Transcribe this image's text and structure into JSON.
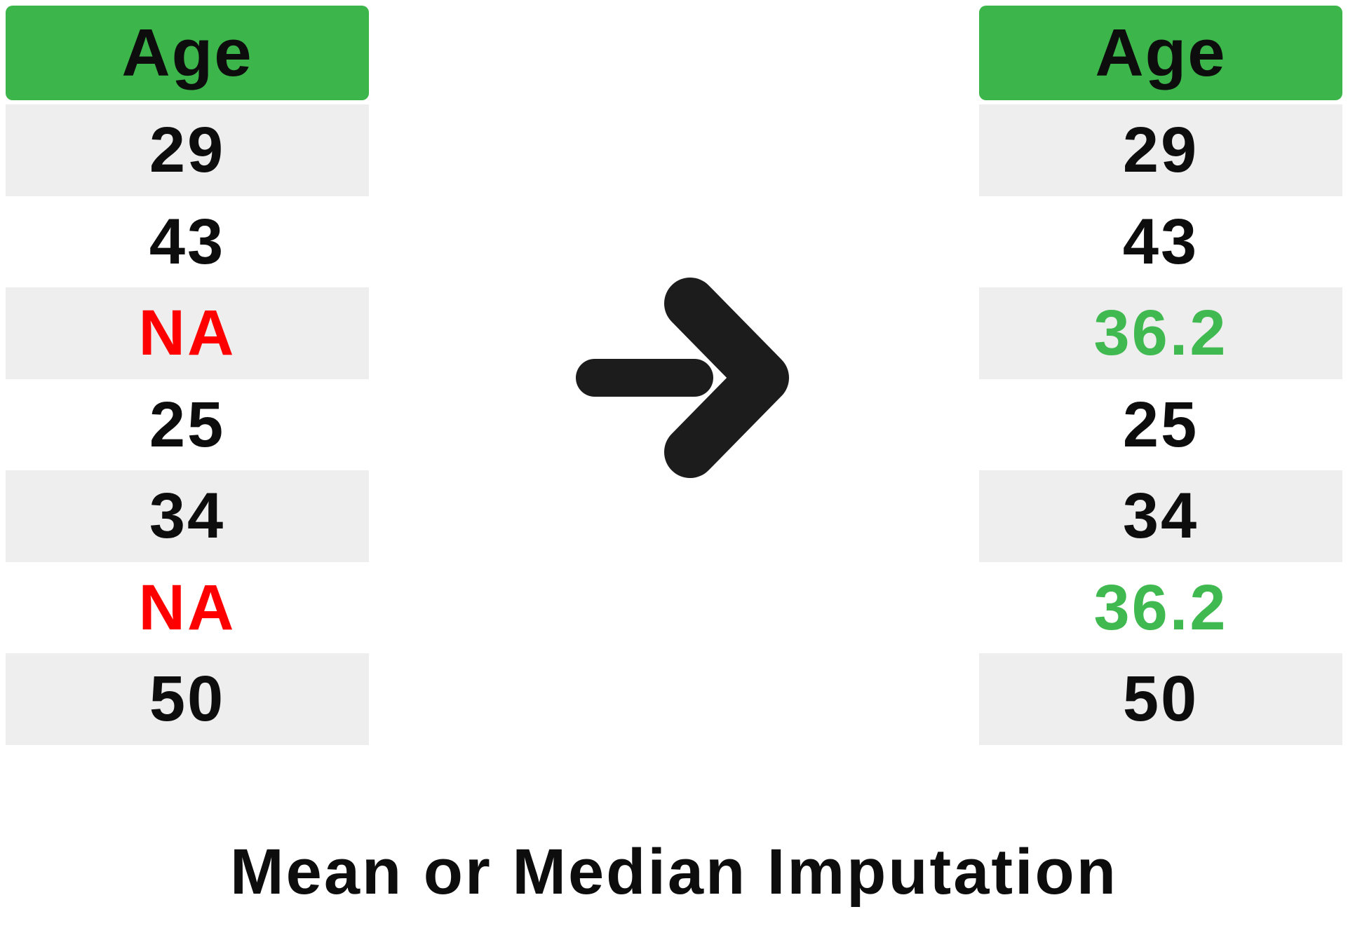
{
  "caption": "Mean or Median Imputation",
  "colors": {
    "header_bg": "#3cb54a",
    "row_alt_bg": "#eeeeee",
    "row_bg": "#ffffff",
    "missing_text": "#ff0000",
    "imputed_text": "#3fb950",
    "text": "#0d0d0d",
    "arrow": "#1c1c1c"
  },
  "arrow_icon": "right-arrow",
  "before_table": {
    "header": "Age",
    "rows": [
      {
        "value": "29",
        "state": "normal"
      },
      {
        "value": "43",
        "state": "normal"
      },
      {
        "value": "NA",
        "state": "missing"
      },
      {
        "value": "25",
        "state": "normal"
      },
      {
        "value": "34",
        "state": "normal"
      },
      {
        "value": "NA",
        "state": "missing"
      },
      {
        "value": "50",
        "state": "normal"
      }
    ]
  },
  "after_table": {
    "header": "Age",
    "rows": [
      {
        "value": "29",
        "state": "normal"
      },
      {
        "value": "43",
        "state": "normal"
      },
      {
        "value": "36.2",
        "state": "imputed"
      },
      {
        "value": "25",
        "state": "normal"
      },
      {
        "value": "34",
        "state": "normal"
      },
      {
        "value": "36.2",
        "state": "imputed"
      },
      {
        "value": "50",
        "state": "normal"
      }
    ]
  }
}
